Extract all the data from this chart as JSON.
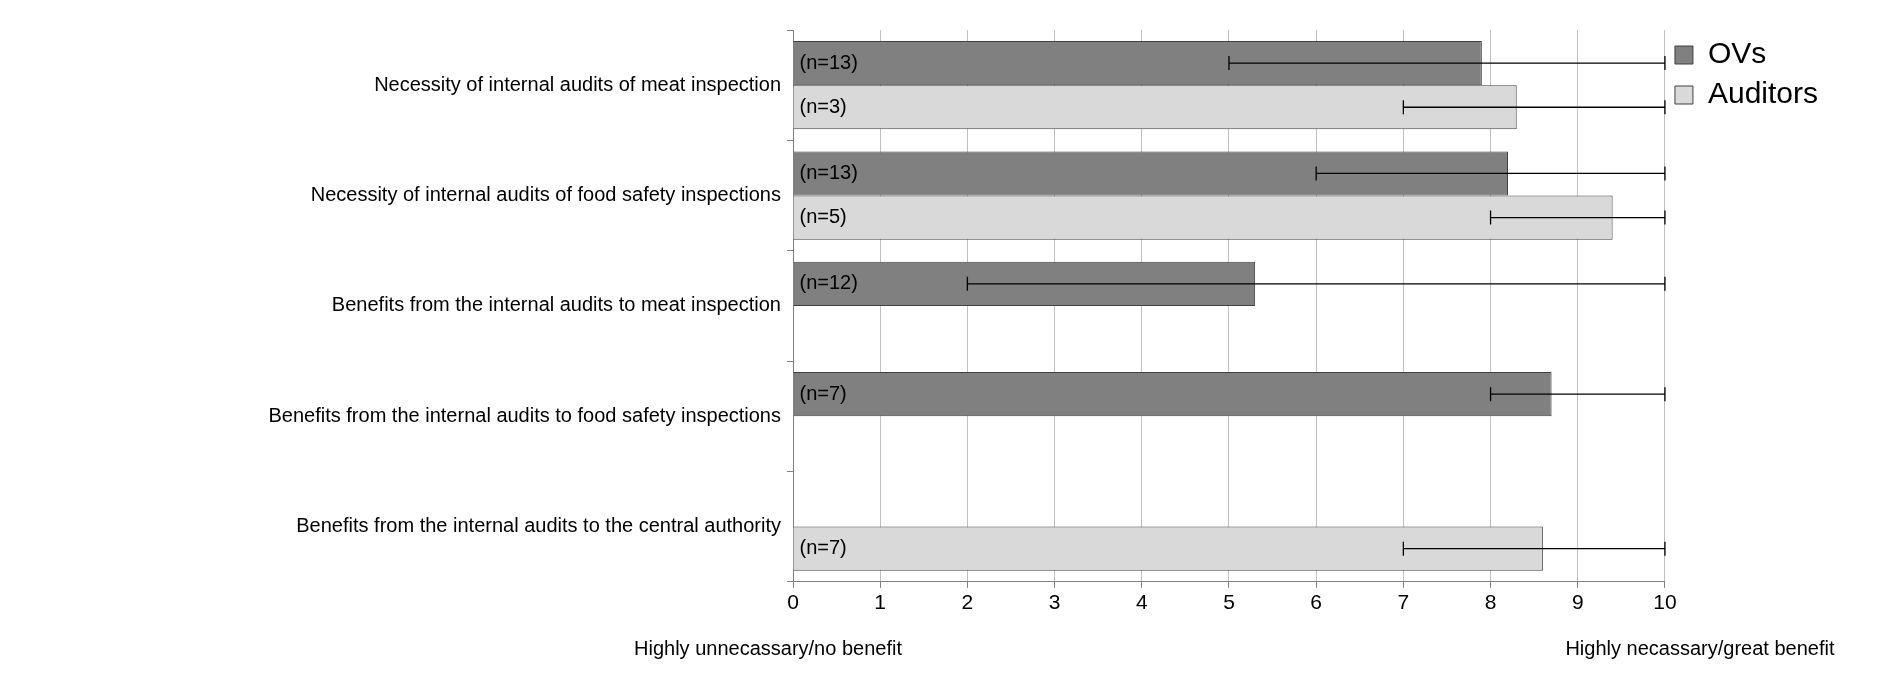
{
  "chart_data": {
    "type": "bar",
    "orientation": "horizontal",
    "categories": [
      "Necessity of internal audits of meat inspection",
      "Necessity of internal audits of food safety inspections",
      "Benefits from the internal audits to meat inspection",
      "Benefits from the internal audits to food safety inspections",
      "Benefits from the internal audits to the central authority"
    ],
    "series": [
      {
        "name": "OVs",
        "color": "#808080",
        "values": [
          7.9,
          8.2,
          5.3,
          8.7,
          null
        ],
        "errors": [
          [
            5,
            10
          ],
          [
            6,
            10
          ],
          [
            2,
            10
          ],
          [
            8,
            10
          ],
          null
        ]
      },
      {
        "name": "Auditors",
        "color": "#d9d9d9",
        "values": [
          8.3,
          9.4,
          null,
          null,
          8.6
        ],
        "errors": [
          [
            7,
            10
          ],
          [
            8,
            10
          ],
          null,
          null,
          [
            7,
            10
          ]
        ]
      }
    ],
    "xlim": [
      0,
      10
    ],
    "xticks": [
      0,
      1,
      2,
      3,
      4,
      5,
      6,
      7,
      8,
      9,
      10
    ],
    "grid": "x",
    "legend": "top right",
    "annotations": [
      "Highly unnecassary/no benefit",
      "Highly necassary/great benefit",
      {
        "text": "(n=13)",
        "y": "Necessity of internal audits of meat inspection"
      },
      {
        "text": "(n=3)",
        "y": "Necessity of internal audits of meat inspection"
      },
      {
        "text": "(n=13)",
        "y": "Necessity of internal audits of food safety inspections"
      },
      {
        "text": "(n=5)",
        "y": "Necessity of internal audits of food safety inspections"
      },
      {
        "text": "(n=12)",
        "y": "Benefits from the internal audits to meat inspection"
      },
      {
        "text": "(n=7)",
        "y": "Benefits from the internal audits to food safety inspections"
      },
      {
        "text": "(n=7)",
        "y": "Benefits from the internal audits to the central authority"
      }
    ]
  }
}
